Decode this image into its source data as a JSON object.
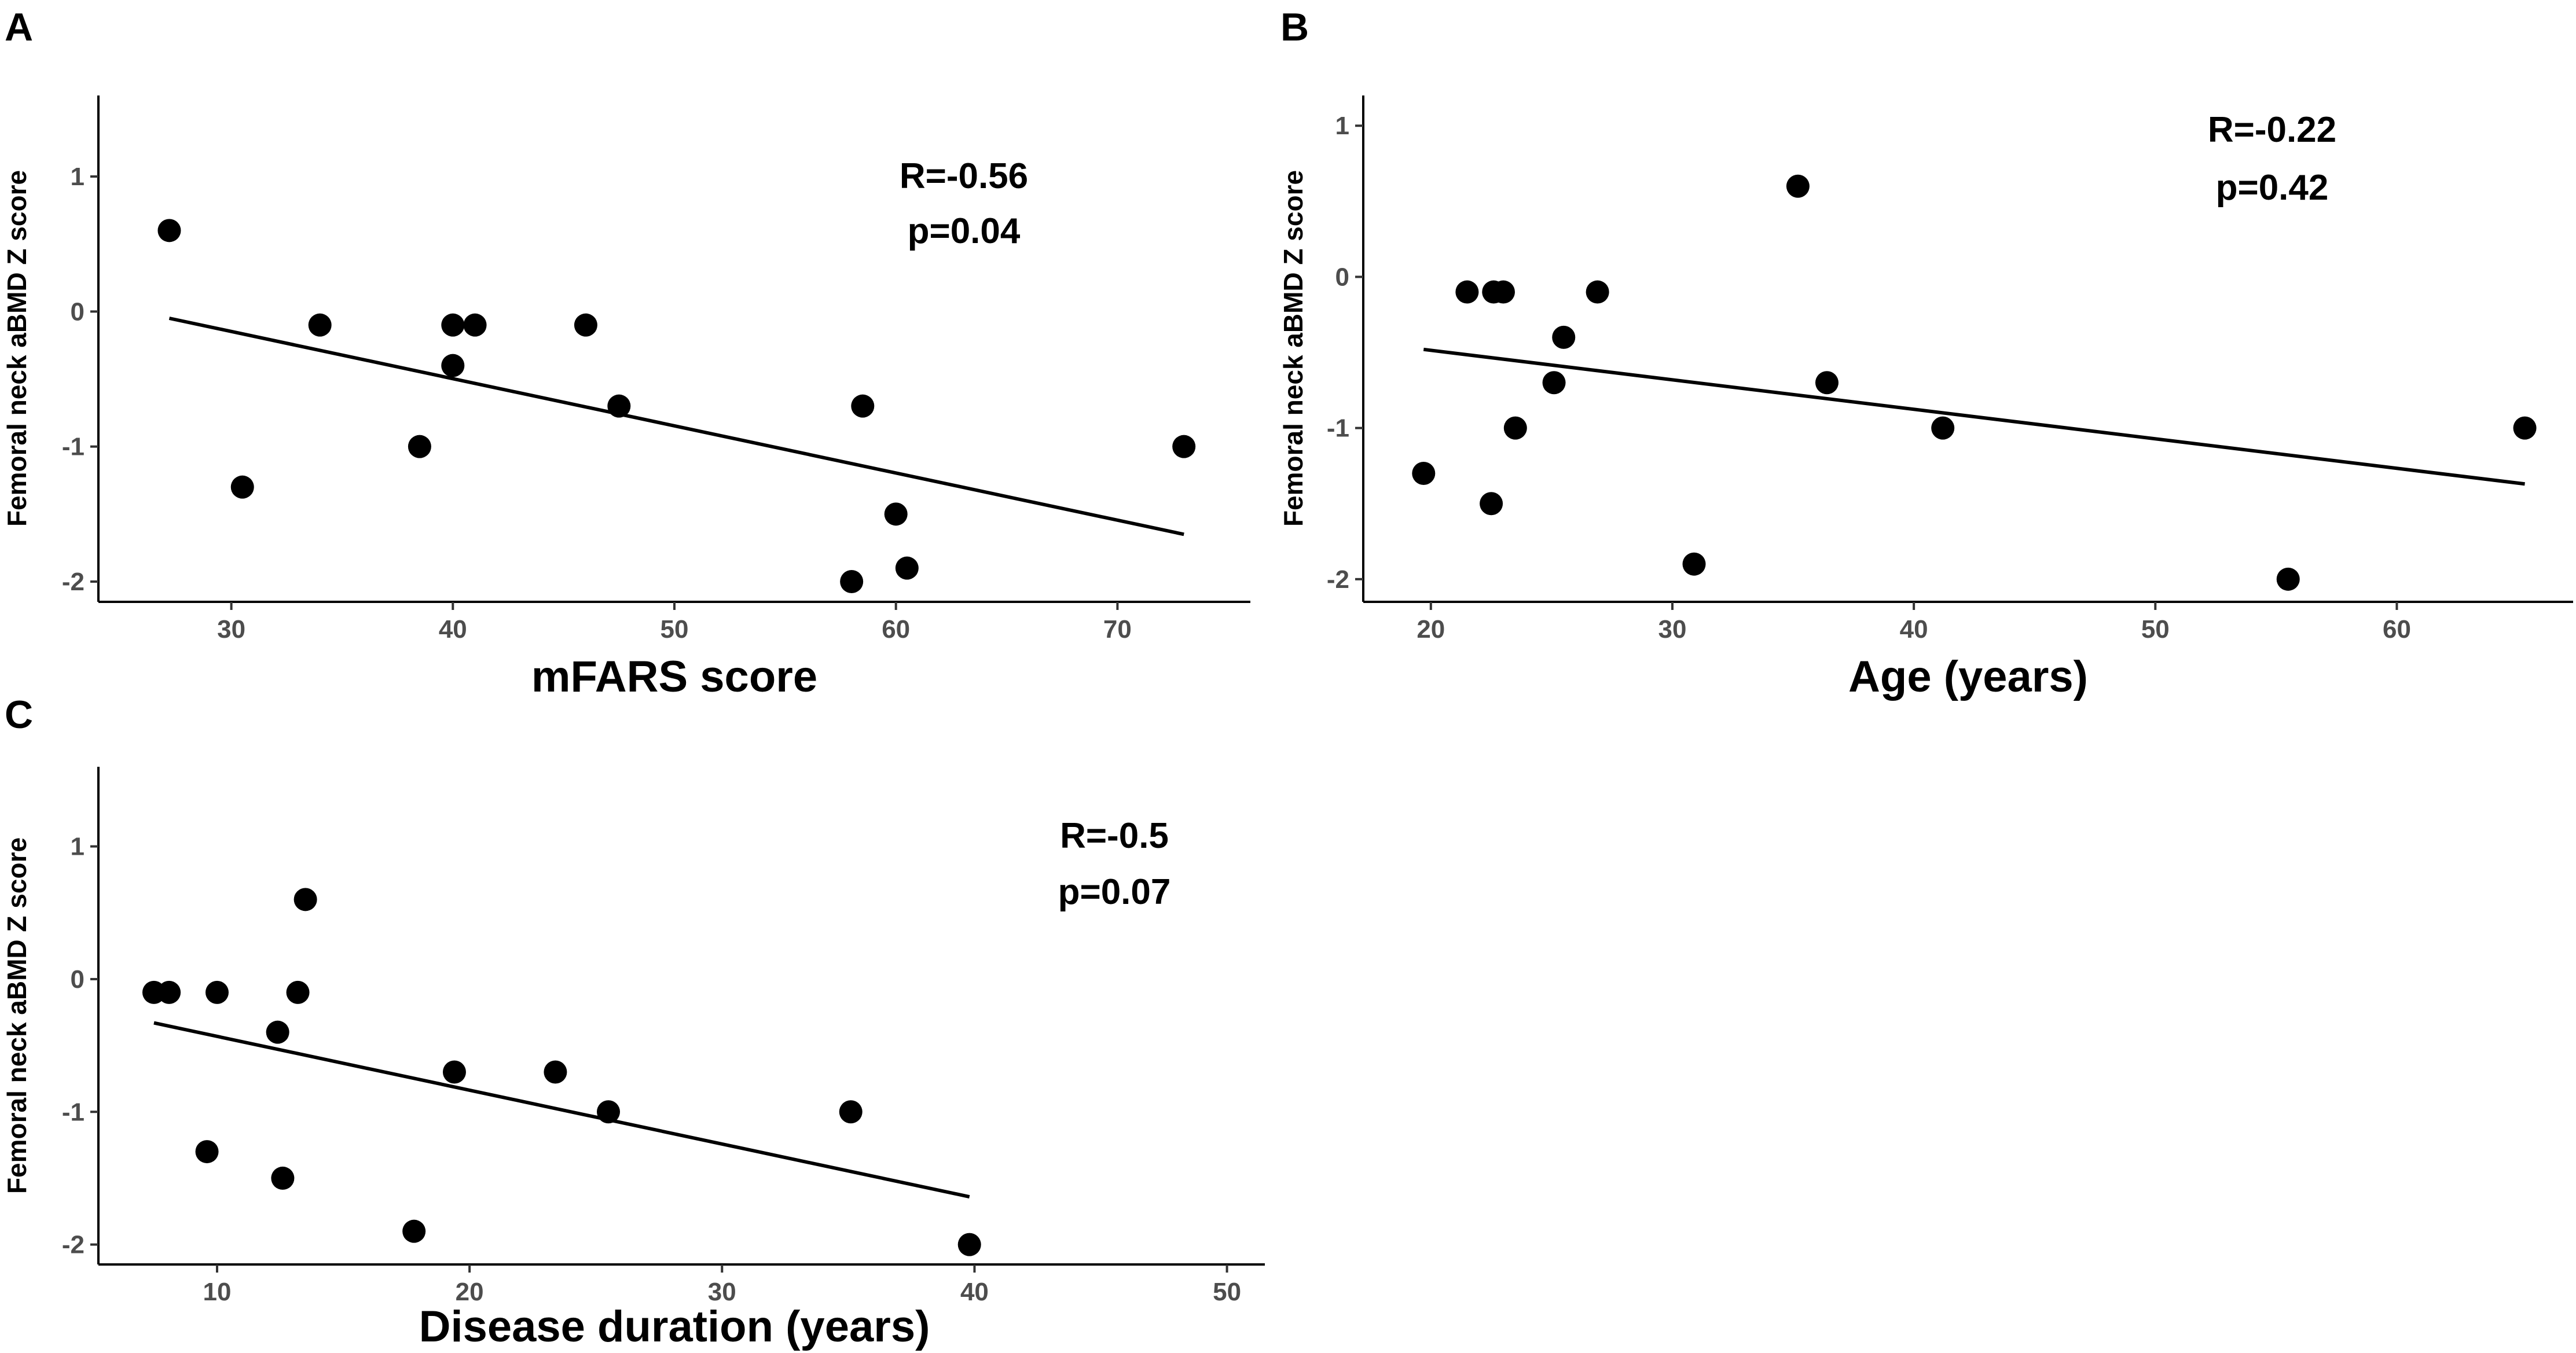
{
  "chart_data": [
    {
      "panel": "A",
      "type": "scatter",
      "xlabel": "mFARS score",
      "ylabel": "Femoral neck aBMD Z score",
      "stats": {
        "r": "R=-0.56",
        "p": "p=0.04"
      },
      "xlim": [
        24,
        76
      ],
      "ylim": [
        -2.15,
        1.6
      ],
      "xticks": [
        30,
        40,
        50,
        60,
        70
      ],
      "yticks": [
        1,
        0,
        -1,
        -2
      ],
      "points": [
        {
          "x": 27.2,
          "y": 0.6
        },
        {
          "x": 30.5,
          "y": -1.3
        },
        {
          "x": 34.0,
          "y": -0.1
        },
        {
          "x": 38.5,
          "y": -1.0
        },
        {
          "x": 40.0,
          "y": -0.1
        },
        {
          "x": 40.0,
          "y": -0.4
        },
        {
          "x": 41.0,
          "y": -0.1
        },
        {
          "x": 46.0,
          "y": -0.1
        },
        {
          "x": 47.5,
          "y": -0.7
        },
        {
          "x": 58.0,
          "y": -2.0
        },
        {
          "x": 58.5,
          "y": -0.7
        },
        {
          "x": 60.0,
          "y": -1.5
        },
        {
          "x": 60.5,
          "y": -1.9
        },
        {
          "x": 73.0,
          "y": -1.0
        }
      ],
      "fit": {
        "x1": 27.2,
        "y1": -0.05,
        "x2": 73.0,
        "y2": -1.65
      }
    },
    {
      "panel": "B",
      "type": "scatter",
      "xlabel": "Age (years)",
      "ylabel": "Femoral neck aBMD Z score",
      "stats": {
        "r": "R=-0.22",
        "p": "p=0.42"
      },
      "xlim": [
        17.2,
        67.3
      ],
      "ylim": [
        -2.15,
        1.2
      ],
      "xticks": [
        20,
        30,
        40,
        50,
        60
      ],
      "yticks": [
        1,
        0,
        -1,
        -2
      ],
      "points": [
        {
          "x": 19.7,
          "y": -1.3
        },
        {
          "x": 21.5,
          "y": -0.1
        },
        {
          "x": 22.5,
          "y": -1.5
        },
        {
          "x": 22.6,
          "y": -0.1
        },
        {
          "x": 23.0,
          "y": -0.1
        },
        {
          "x": 23.5,
          "y": -1.0
        },
        {
          "x": 25.1,
          "y": -0.7
        },
        {
          "x": 25.5,
          "y": -0.4
        },
        {
          "x": 26.9,
          "y": -0.1
        },
        {
          "x": 30.9,
          "y": -1.9
        },
        {
          "x": 35.2,
          "y": 0.6
        },
        {
          "x": 36.4,
          "y": -0.7
        },
        {
          "x": 41.2,
          "y": -1.0
        },
        {
          "x": 55.5,
          "y": -2.0
        },
        {
          "x": 65.3,
          "y": -1.0
        }
      ],
      "fit": {
        "x1": 19.7,
        "y1": -0.48,
        "x2": 65.3,
        "y2": -1.37
      }
    },
    {
      "panel": "C",
      "type": "scatter",
      "xlabel": "Disease duration (years)",
      "ylabel": "Femoral neck aBMD Z score",
      "stats": {
        "r": "R=-0.5",
        "p": "p=0.07"
      },
      "xlim": [
        5.3,
        51.5
      ],
      "ylim": [
        -2.15,
        1.6
      ],
      "xticks": [
        10,
        20,
        30,
        40,
        50
      ],
      "yticks": [
        1,
        0,
        -1,
        -2
      ],
      "points": [
        {
          "x": 7.5,
          "y": -0.1
        },
        {
          "x": 8.1,
          "y": -0.1
        },
        {
          "x": 9.6,
          "y": -1.3
        },
        {
          "x": 10.0,
          "y": -0.1
        },
        {
          "x": 12.4,
          "y": -0.4
        },
        {
          "x": 12.6,
          "y": -1.5
        },
        {
          "x": 13.2,
          "y": -0.1
        },
        {
          "x": 13.5,
          "y": 0.6
        },
        {
          "x": 17.8,
          "y": -1.9
        },
        {
          "x": 19.4,
          "y": -0.7
        },
        {
          "x": 23.4,
          "y": -0.7
        },
        {
          "x": 25.5,
          "y": -1.0
        },
        {
          "x": 35.1,
          "y": -1.0
        },
        {
          "x": 39.8,
          "y": -2.0
        }
      ],
      "fit": {
        "x1": 7.5,
        "y1": -0.33,
        "x2": 39.8,
        "y2": -1.64
      }
    }
  ]
}
